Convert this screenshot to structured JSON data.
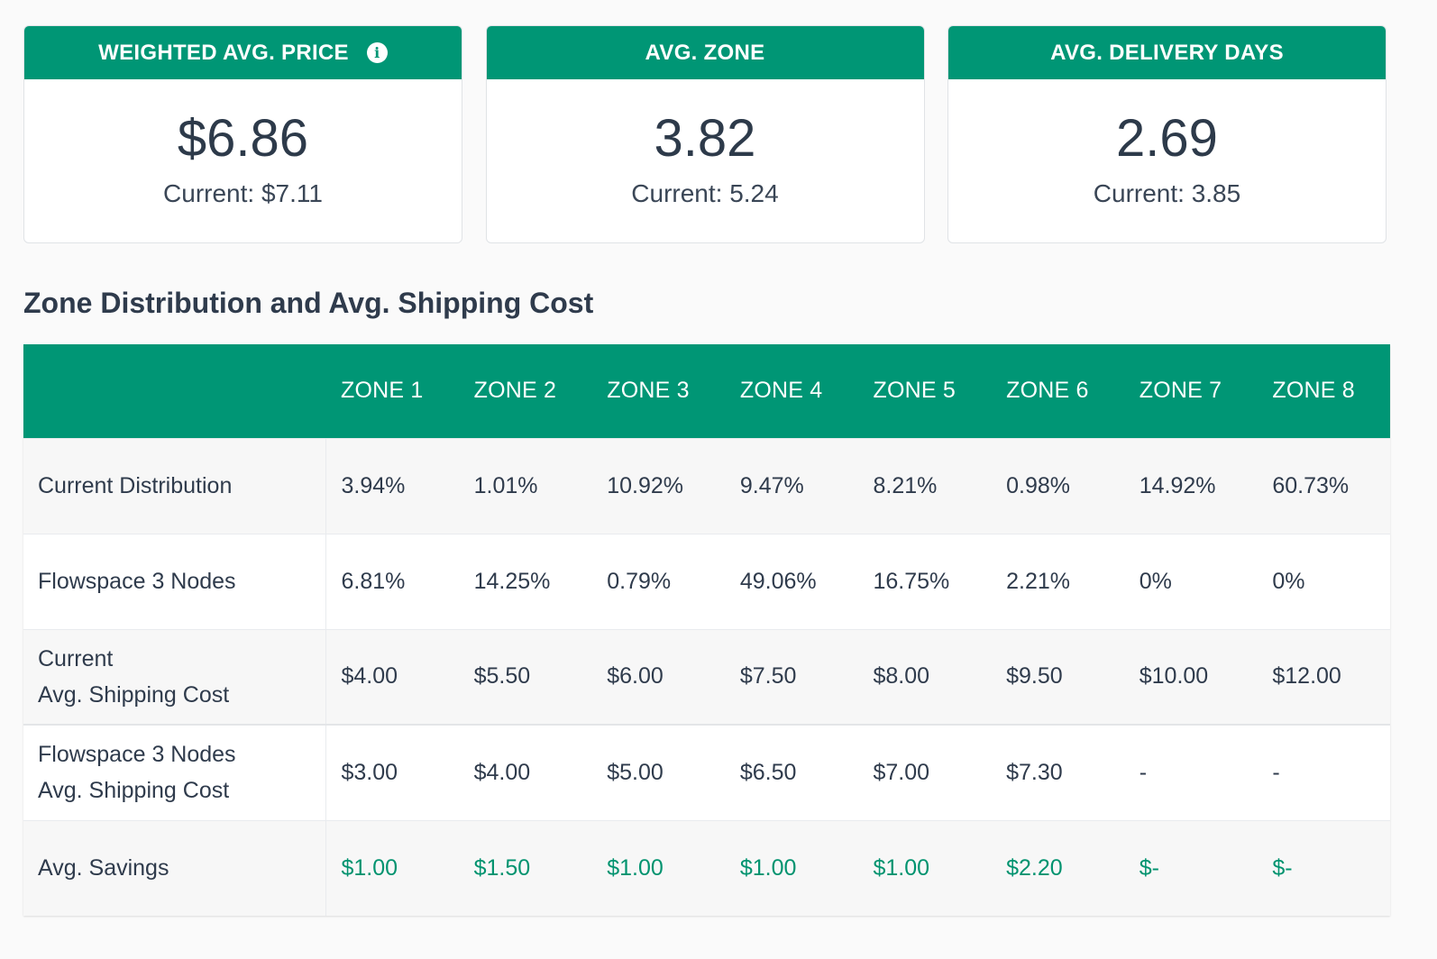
{
  "cards": [
    {
      "title": "WEIGHTED AVG. PRICE",
      "has_info": true,
      "value": "$6.86",
      "sub": "Current: $7.11"
    },
    {
      "title": "AVG. ZONE",
      "has_info": false,
      "value": "3.82",
      "sub": "Current: 5.24"
    },
    {
      "title": "AVG. DELIVERY DAYS",
      "has_info": false,
      "value": "2.69",
      "sub": "Current: 3.85"
    }
  ],
  "info_icon_glyph": "i",
  "section_title": "Zone Distribution and Avg. Shipping Cost",
  "table": {
    "headers": [
      "ZONE 1",
      "ZONE 2",
      "ZONE 3",
      "ZONE 4",
      "ZONE 5",
      "ZONE 6",
      "ZONE 7",
      "ZONE 8"
    ],
    "rows": [
      {
        "label_line1": "Current Distribution",
        "label_line2": "",
        "cells": [
          "3.94%",
          "1.01%",
          "10.92%",
          "9.47%",
          "8.21%",
          "0.98%",
          "14.92%",
          "60.73%"
        ]
      },
      {
        "label_line1": "Flowspace 3 Nodes",
        "label_line2": "",
        "cells": [
          "6.81%",
          "14.25%",
          "0.79%",
          "49.06%",
          "16.75%",
          "2.21%",
          "0%",
          "0%"
        ]
      },
      {
        "label_line1": "Current",
        "label_line2": "Avg. Shipping Cost",
        "cells": [
          "$4.00",
          "$5.50",
          "$6.00",
          "$7.50",
          "$8.00",
          "$9.50",
          "$10.00",
          "$12.00"
        ]
      },
      {
        "label_line1": "Flowspace 3 Nodes",
        "label_line2": "Avg. Shipping Cost",
        "cells": [
          "$3.00",
          "$4.00",
          "$5.00",
          "$6.50",
          "$7.00",
          "$7.30",
          "-",
          "-"
        ]
      },
      {
        "label_line1": "Avg. Savings",
        "label_line2": "",
        "cells": [
          "$1.00",
          "$1.50",
          "$1.00",
          "$1.00",
          "$1.00",
          "$2.20",
          "$-",
          "$-"
        ]
      }
    ]
  },
  "colors": {
    "accent": "#009675",
    "savings_text": "#00936f",
    "text": "#2f3b4c"
  }
}
